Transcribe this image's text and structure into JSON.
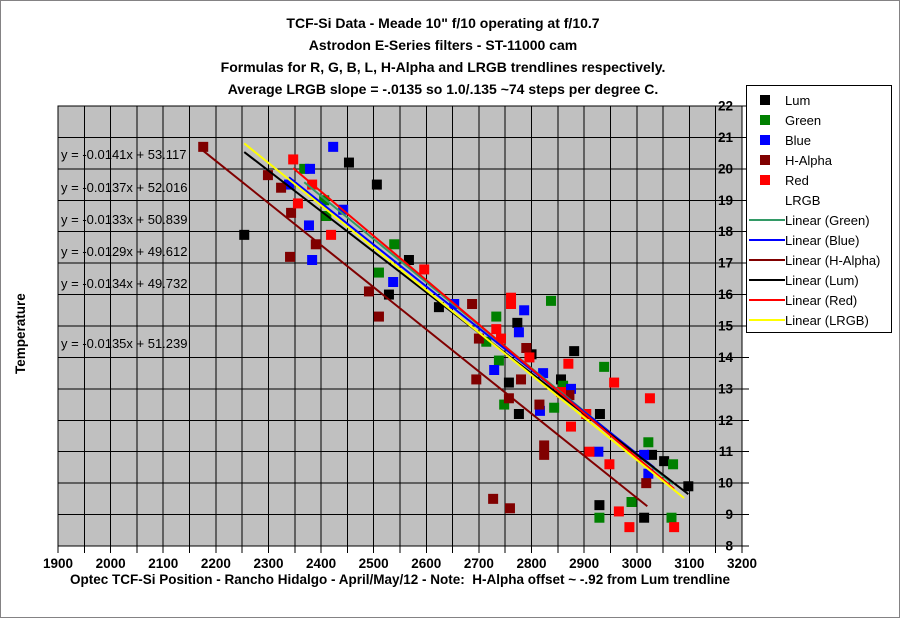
{
  "chart_data": {
    "type": "scatter",
    "title_lines": [
      "TCF-Si Data - Meade 10\" f/10 operating at f/10.7",
      "Astrodon E-Series filters - ST-11000 cam",
      "Formulas for R, G, B, L,  H-Alpha and LRGB trendlines respectively.",
      "Average LRGB slope = -.0135 so 1.0/.135 ~74 steps per degree C."
    ],
    "xlabel": "Optec TCF-Si Position - Rancho Hidalgo - April/May/12 - Note:  H-Alpha offset ~ -.92 from Lum trendline",
    "ylabel": "Temperature",
    "xlim": [
      1900,
      3200
    ],
    "ylim": [
      8,
      22
    ],
    "x_minor_step": 50,
    "x_label_step": 100,
    "y_step": 1,
    "x_tick_labels": [
      "1900",
      "2000",
      "2100",
      "2200",
      "2300",
      "2400",
      "2500",
      "2600",
      "2700",
      "2800",
      "2900",
      "3000",
      "3100",
      "3200"
    ],
    "y_tick_labels": [
      "8",
      "9",
      "10",
      "11",
      "12",
      "13",
      "14",
      "15",
      "16",
      "17",
      "18",
      "19",
      "20",
      "21",
      "22"
    ],
    "grid": true,
    "plot_bg": "#C0C0C0",
    "formulas": [
      "y = -0.0141x + 53.117",
      "y = -0.0137x + 52.016",
      "y = -0.0133x + 50.839",
      "y = -0.0129x + 49.612",
      "y = -0.0134x + 49.732",
      "y = -0.0135x + 51.239"
    ],
    "series": [
      {
        "name": "Lum",
        "color": "#000000",
        "points": [
          [
            2254,
            17.9
          ],
          [
            2453,
            20.2
          ],
          [
            2506,
            19.5
          ],
          [
            2529,
            16.0
          ],
          [
            2567,
            17.1
          ],
          [
            2624,
            15.6
          ],
          [
            2757,
            13.2
          ],
          [
            2773,
            15.1
          ],
          [
            2776,
            12.2
          ],
          [
            2800,
            14.1
          ],
          [
            2856,
            13.3
          ],
          [
            2881,
            14.2
          ],
          [
            2930,
            12.2
          ],
          [
            2929,
            9.3
          ],
          [
            3014,
            8.9
          ],
          [
            3029,
            10.9
          ],
          [
            3052,
            10.7
          ],
          [
            3098,
            9.9
          ]
        ]
      },
      {
        "name": "Green",
        "color": "#008000",
        "points": [
          [
            2368,
            20.0
          ],
          [
            2406,
            19.0
          ],
          [
            2410,
            18.5
          ],
          [
            2510,
            16.7
          ],
          [
            2539,
            17.6
          ],
          [
            2714,
            14.5
          ],
          [
            2733,
            15.3
          ],
          [
            2738,
            13.9
          ],
          [
            2748,
            12.5
          ],
          [
            2837,
            15.8
          ],
          [
            2843,
            12.4
          ],
          [
            2860,
            13.1
          ],
          [
            2929,
            8.9
          ],
          [
            2938,
            13.7
          ],
          [
            2990,
            9.4
          ],
          [
            3022,
            11.3
          ],
          [
            3066,
            8.9
          ],
          [
            3069,
            10.6
          ]
        ]
      },
      {
        "name": "Blue",
        "color": "#0000FF",
        "points": [
          [
            2339,
            19.5
          ],
          [
            2377,
            18.2
          ],
          [
            2379,
            20.0
          ],
          [
            2383,
            17.1
          ],
          [
            2423,
            20.7
          ],
          [
            2442,
            18.7
          ],
          [
            2537,
            16.4
          ],
          [
            2653,
            15.7
          ],
          [
            2729,
            13.6
          ],
          [
            2776,
            14.8
          ],
          [
            2786,
            15.5
          ],
          [
            2816,
            12.3
          ],
          [
            2822,
            13.5
          ],
          [
            2875,
            13.0
          ],
          [
            2927,
            11.0
          ],
          [
            3014,
            10.9
          ],
          [
            3022,
            10.3
          ]
        ]
      },
      {
        "name": "H-Alpha",
        "color": "#800000",
        "points": [
          [
            2176,
            20.7
          ],
          [
            2299,
            19.8
          ],
          [
            2324,
            19.4
          ],
          [
            2341,
            17.2
          ],
          [
            2343,
            18.6
          ],
          [
            2390,
            17.6
          ],
          [
            2491,
            16.1
          ],
          [
            2510,
            15.3
          ],
          [
            2687,
            15.7
          ],
          [
            2695,
            13.3
          ],
          [
            2700,
            14.6
          ],
          [
            2727,
            9.5
          ],
          [
            2757,
            12.7
          ],
          [
            2759,
            9.2
          ],
          [
            2780,
            13.3
          ],
          [
            2790,
            14.3
          ],
          [
            2815,
            12.5
          ],
          [
            2824,
            11.2
          ],
          [
            2824,
            10.9
          ],
          [
            2872,
            12.8
          ],
          [
            3018,
            10.0
          ]
        ]
      },
      {
        "name": "Red",
        "color": "#FF0000",
        "points": [
          [
            2347,
            20.3
          ],
          [
            2356,
            18.9
          ],
          [
            2383,
            19.5
          ],
          [
            2419,
            17.9
          ],
          [
            2596,
            16.8
          ],
          [
            2733,
            14.9
          ],
          [
            2742,
            14.6
          ],
          [
            2761,
            15.9
          ],
          [
            2761,
            15.7
          ],
          [
            2796,
            14.0
          ],
          [
            2856,
            12.9
          ],
          [
            2870,
            13.8
          ],
          [
            2875,
            11.8
          ],
          [
            2904,
            12.2
          ],
          [
            2910,
            11.0
          ],
          [
            2948,
            10.6
          ],
          [
            2957,
            13.2
          ],
          [
            2966,
            9.1
          ],
          [
            2986,
            8.6
          ],
          [
            3025,
            12.7
          ],
          [
            3071,
            8.6
          ]
        ]
      }
    ],
    "trendlines": [
      {
        "name": "Linear (Green)",
        "color": "#339966",
        "slope": -0.0137,
        "intercept": 52.016,
        "x_range": [
          2368,
          3069
        ]
      },
      {
        "name": "Linear (Blue)",
        "color": "#0000FF",
        "slope": -0.0133,
        "intercept": 50.839,
        "x_range": [
          2339,
          3033
        ]
      },
      {
        "name": "Linear (H-Alpha)",
        "color": "#800000",
        "slope": -0.0134,
        "intercept": 49.732,
        "x_range": [
          2176,
          3020
        ]
      },
      {
        "name": "Linear (Lum)",
        "color": "#000000",
        "slope": -0.0129,
        "intercept": 49.612,
        "x_range": [
          2254,
          3098
        ]
      },
      {
        "name": "Linear (Red)",
        "color": "#FF0000",
        "slope": -0.0141,
        "intercept": 53.117,
        "x_range": [
          2347,
          3071
        ]
      },
      {
        "name": "Linear (LRGB)",
        "color": "#FFFF00",
        "slope": -0.0135,
        "intercept": 51.239,
        "x_range": [
          2254,
          3090
        ]
      }
    ],
    "legend": {
      "position": "right",
      "items": [
        {
          "label": "Lum",
          "swatch": "marker",
          "color": "#000000"
        },
        {
          "label": "Green",
          "swatch": "marker",
          "color": "#008000"
        },
        {
          "label": "Blue",
          "swatch": "marker",
          "color": "#0000FF"
        },
        {
          "label": "H-Alpha",
          "swatch": "marker",
          "color": "#800000"
        },
        {
          "label": "Red",
          "swatch": "marker",
          "color": "#FF0000"
        },
        {
          "label": "LRGB",
          "swatch": "none",
          "color": ""
        },
        {
          "label": "Linear (Green)",
          "swatch": "line",
          "color": "#339966"
        },
        {
          "label": "Linear (Blue)",
          "swatch": "line",
          "color": "#0000FF"
        },
        {
          "label": "Linear (H-Alpha)",
          "swatch": "line",
          "color": "#800000"
        },
        {
          "label": "Linear (Lum)",
          "swatch": "line",
          "color": "#000000"
        },
        {
          "label": "Linear (Red)",
          "swatch": "line",
          "color": "#FF0000"
        },
        {
          "label": "Linear (LRGB)",
          "swatch": "line",
          "color": "#FFFF00"
        }
      ]
    }
  }
}
